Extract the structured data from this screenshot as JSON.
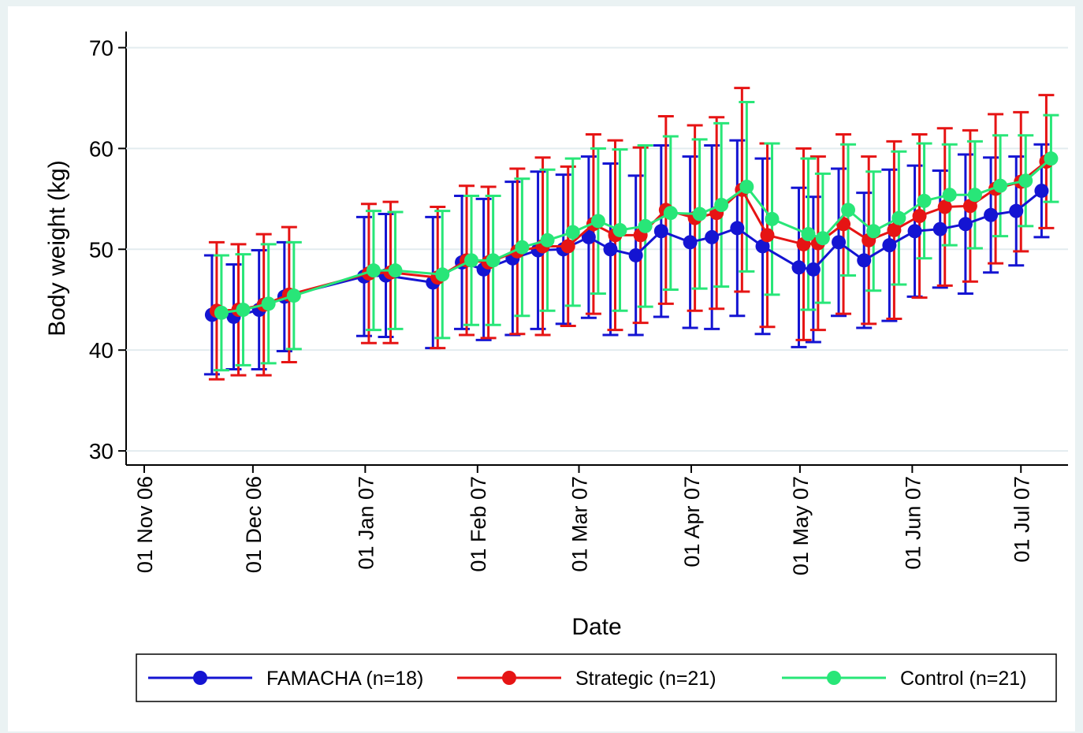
{
  "chart_data": {
    "type": "line",
    "xlabel": "Date",
    "ylabel": "Body weight (kg)",
    "x": [
      "2006-11-21",
      "2006-11-27",
      "2006-12-04",
      "2006-12-11",
      "2007-01-02",
      "2007-01-08",
      "2007-01-21",
      "2007-01-29",
      "2007-02-04",
      "2007-02-12",
      "2007-02-19",
      "2007-02-26",
      "2007-03-05",
      "2007-03-11",
      "2007-03-18",
      "2007-03-25",
      "2007-04-02",
      "2007-04-08",
      "2007-04-15",
      "2007-04-22",
      "2007-05-02",
      "2007-05-06",
      "2007-05-13",
      "2007-05-20",
      "2007-05-27",
      "2007-06-03",
      "2007-06-10",
      "2007-06-17",
      "2007-06-24",
      "2007-07-01",
      "2007-07-08"
    ],
    "series": [
      {
        "name": "FAMACHA (n=18)",
        "color": "#1414d2",
        "values": [
          43.5,
          43.3,
          44.0,
          45.3,
          47.3,
          47.4,
          46.7,
          48.7,
          48.0,
          49.1,
          49.9,
          50.0,
          51.2,
          50.0,
          49.4,
          51.8,
          50.7,
          51.2,
          52.1,
          50.3,
          48.2,
          48.0,
          50.7,
          48.9,
          50.4,
          51.8,
          52.0,
          52.5,
          53.4,
          53.8,
          55.8
        ],
        "errors": [
          5.9,
          5.2,
          5.9,
          5.4,
          5.9,
          6.1,
          6.5,
          6.6,
          7.0,
          7.6,
          7.8,
          7.4,
          8.0,
          8.5,
          7.9,
          8.5,
          8.5,
          9.1,
          8.7,
          8.7,
          7.9,
          7.2,
          7.3,
          6.7,
          7.5,
          6.5,
          5.8,
          6.9,
          5.7,
          5.4,
          4.6
        ]
      },
      {
        "name": "Strategic (n=21)",
        "color": "#e61414",
        "values": [
          43.9,
          44.0,
          44.5,
          45.5,
          47.6,
          47.7,
          47.2,
          48.9,
          48.7,
          49.8,
          50.3,
          50.3,
          52.5,
          51.4,
          51.4,
          53.9,
          53.1,
          53.6,
          55.9,
          51.4,
          50.5,
          50.6,
          52.5,
          50.9,
          51.9,
          53.3,
          54.2,
          54.3,
          56.0,
          56.7,
          58.7
        ],
        "errors": [
          6.8,
          6.5,
          7.0,
          6.7,
          6.9,
          7.0,
          7.0,
          7.4,
          7.5,
          8.2,
          8.8,
          7.9,
          8.9,
          9.4,
          8.7,
          9.3,
          9.2,
          9.5,
          10.1,
          9.1,
          9.5,
          8.6,
          8.9,
          8.3,
          8.8,
          8.1,
          7.8,
          7.5,
          7.4,
          6.9,
          6.6
        ]
      },
      {
        "name": "Control (n=21)",
        "color": "#28e678",
        "values": [
          43.7,
          44.0,
          44.6,
          45.4,
          47.9,
          47.9,
          47.5,
          48.9,
          48.9,
          50.2,
          50.9,
          51.7,
          52.8,
          51.9,
          52.3,
          53.6,
          53.5,
          54.4,
          56.2,
          53.0,
          51.5,
          51.1,
          53.9,
          51.8,
          53.1,
          54.8,
          55.4,
          55.4,
          56.3,
          56.8,
          59.0
        ],
        "errors": [
          5.7,
          5.5,
          5.9,
          5.3,
          5.9,
          5.8,
          6.3,
          6.4,
          6.4,
          6.8,
          7.0,
          7.3,
          7.2,
          8.0,
          8.0,
          7.6,
          7.4,
          8.1,
          8.4,
          7.5,
          7.5,
          6.4,
          6.5,
          5.9,
          6.6,
          5.7,
          5.0,
          5.3,
          5.0,
          4.5,
          4.3
        ]
      }
    ],
    "xlim": [
      "2006-10-27",
      "2007-07-14"
    ],
    "xticks": [
      {
        "value": "2006-11-01",
        "label": "01 Nov 06"
      },
      {
        "value": "2006-12-01",
        "label": "01 Dec 06"
      },
      {
        "value": "2007-01-01",
        "label": "01 Jan 07"
      },
      {
        "value": "2007-02-01",
        "label": "01 Feb 07"
      },
      {
        "value": "2007-03-01",
        "label": "01 Mar 07"
      },
      {
        "value": "2007-04-01",
        "label": "01 Apr 07"
      },
      {
        "value": "2007-05-01",
        "label": "01 May 07"
      },
      {
        "value": "2007-06-01",
        "label": "01 Jun 07"
      },
      {
        "value": "2007-07-01",
        "label": "01 Jul 07"
      }
    ],
    "ylim": [
      28.6,
      71.6
    ],
    "yticks": [
      30,
      40,
      50,
      60,
      70
    ],
    "grid": true,
    "legend": "bottom"
  }
}
